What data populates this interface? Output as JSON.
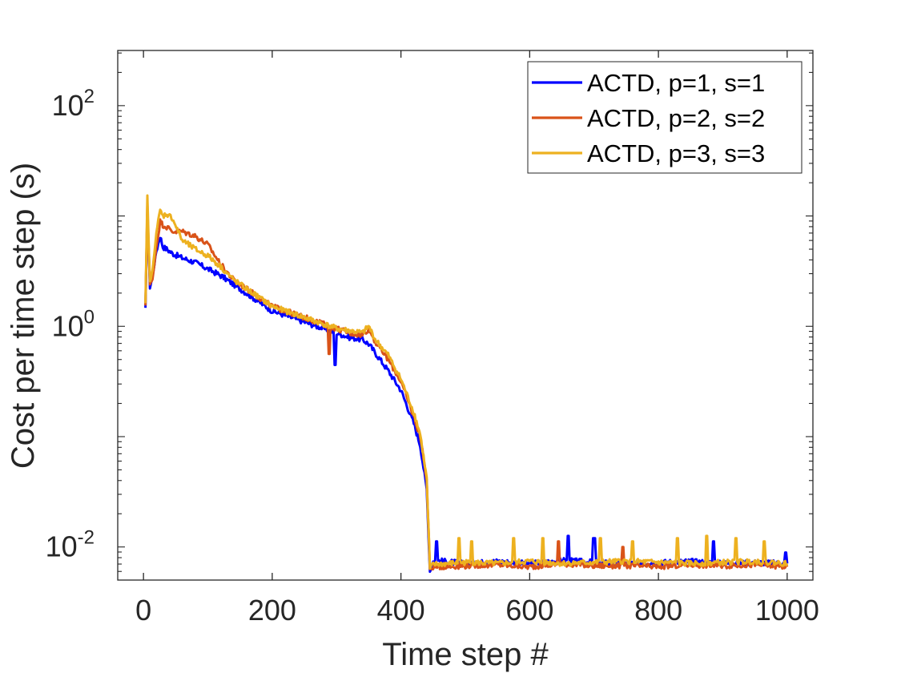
{
  "chart_data": {
    "type": "line",
    "title": "",
    "xlabel": "Time step #",
    "ylabel": "Cost per time step (s)",
    "xlim": [
      -40,
      1040
    ],
    "ylim_log10": [
      -2.3,
      2.5
    ],
    "y_scale": "log",
    "grid": false,
    "legend_position": "top-right",
    "x_ticks": [
      {
        "value": 0,
        "label": "0"
      },
      {
        "value": 200,
        "label": "200"
      },
      {
        "value": 400,
        "label": "400"
      },
      {
        "value": 600,
        "label": "600"
      },
      {
        "value": 800,
        "label": "800"
      },
      {
        "value": 1000,
        "label": "1000"
      }
    ],
    "y_ticks": [
      {
        "exponent": -2,
        "base": "10",
        "sup": "-2"
      },
      {
        "exponent": 0,
        "base": "10",
        "sup": "0"
      },
      {
        "exponent": 2,
        "base": "10",
        "sup": "2"
      }
    ],
    "series": [
      {
        "name": "ACTD, p=1, s=1",
        "color": "#0000ff",
        "x": [
          3,
          6,
          10,
          14,
          20,
          26,
          30,
          36,
          45,
          60,
          80,
          100,
          120,
          140,
          160,
          180,
          200,
          220,
          240,
          260,
          280,
          300,
          320,
          340,
          350,
          360,
          380,
          400,
          420,
          430,
          435,
          440,
          445,
          450,
          500,
          550,
          600,
          650,
          700,
          750,
          800,
          850,
          900,
          950,
          1000
        ],
        "log10": [
          0.16,
          1.05,
          0.35,
          0.45,
          0.68,
          0.82,
          0.72,
          0.7,
          0.66,
          0.62,
          0.58,
          0.52,
          0.46,
          0.38,
          0.3,
          0.22,
          0.14,
          0.1,
          0.06,
          0.02,
          -0.02,
          -0.06,
          -0.1,
          -0.12,
          -0.16,
          -0.24,
          -0.4,
          -0.58,
          -0.88,
          -1.08,
          -1.28,
          -1.48,
          -2.22,
          -2.12,
          -2.15,
          -2.13,
          -2.15,
          -2.12,
          -2.14,
          -2.15,
          -2.14,
          -2.13,
          -2.15,
          -2.14,
          -2.15
        ],
        "spikes": [
          {
            "x": 455,
            "log10": -1.95
          },
          {
            "x": 297,
            "log10": -0.35
          },
          {
            "x": 660,
            "log10": -1.9
          },
          {
            "x": 700,
            "log10": -1.92
          },
          {
            "x": 885,
            "log10": -1.95
          },
          {
            "x": 998,
            "log10": -2.05
          }
        ]
      },
      {
        "name": "ACTD, p=2, s=2",
        "color": "#d95319",
        "x": [
          3,
          6,
          10,
          14,
          20,
          26,
          30,
          36,
          45,
          60,
          80,
          100,
          120,
          140,
          160,
          180,
          200,
          220,
          240,
          260,
          280,
          300,
          320,
          340,
          350,
          360,
          380,
          400,
          420,
          430,
          435,
          440,
          445,
          450,
          500,
          550,
          600,
          650,
          700,
          750,
          800,
          850,
          900,
          950,
          1000
        ],
        "log10": [
          0.18,
          1.1,
          0.38,
          0.42,
          0.72,
          0.95,
          0.92,
          0.9,
          0.86,
          0.86,
          0.82,
          0.74,
          0.56,
          0.42,
          0.34,
          0.26,
          0.18,
          0.14,
          0.1,
          0.06,
          0.02,
          -0.02,
          -0.06,
          -0.08,
          -0.02,
          -0.14,
          -0.3,
          -0.5,
          -0.82,
          -1.0,
          -1.18,
          -1.4,
          -2.2,
          -2.18,
          -2.17,
          -2.16,
          -2.18,
          -2.15,
          -2.17,
          -2.17,
          -2.18,
          -2.16,
          -2.17,
          -2.16,
          -2.18
        ],
        "spikes": [
          {
            "x": 288,
            "log10": -0.25
          },
          {
            "x": 645,
            "log10": -1.95
          },
          {
            "x": 745,
            "log10": -2.0
          }
        ]
      },
      {
        "name": "ACTD, p=3, s=3",
        "color": "#edb120",
        "x": [
          3,
          6,
          10,
          14,
          20,
          26,
          30,
          36,
          45,
          60,
          80,
          100,
          120,
          140,
          160,
          180,
          200,
          220,
          240,
          260,
          280,
          300,
          320,
          340,
          350,
          360,
          380,
          400,
          420,
          430,
          435,
          440,
          445,
          450,
          500,
          550,
          600,
          650,
          700,
          750,
          800,
          850,
          900,
          950,
          1000
        ],
        "log10": [
          0.2,
          1.18,
          0.4,
          0.5,
          0.85,
          1.05,
          1.0,
          1.02,
          0.98,
          0.78,
          0.7,
          0.64,
          0.54,
          0.42,
          0.34,
          0.26,
          0.18,
          0.14,
          0.1,
          0.06,
          0.02,
          -0.02,
          -0.04,
          -0.06,
          0.0,
          -0.12,
          -0.26,
          -0.48,
          -0.78,
          -0.98,
          -1.18,
          -1.38,
          -2.2,
          -2.16,
          -2.14,
          -2.15,
          -2.13,
          -2.15,
          -2.14,
          -2.13,
          -2.14,
          -2.15,
          -2.14,
          -2.13,
          -2.15
        ],
        "spikes": [
          {
            "x": 490,
            "log10": -1.92
          },
          {
            "x": 510,
            "log10": -1.95
          },
          {
            "x": 575,
            "log10": -1.92
          },
          {
            "x": 620,
            "log10": -1.92
          },
          {
            "x": 710,
            "log10": -1.92
          },
          {
            "x": 760,
            "log10": -1.95
          },
          {
            "x": 830,
            "log10": -1.92
          },
          {
            "x": 875,
            "log10": -1.9
          },
          {
            "x": 920,
            "log10": -1.92
          },
          {
            "x": 965,
            "log10": -1.95
          }
        ]
      }
    ]
  }
}
